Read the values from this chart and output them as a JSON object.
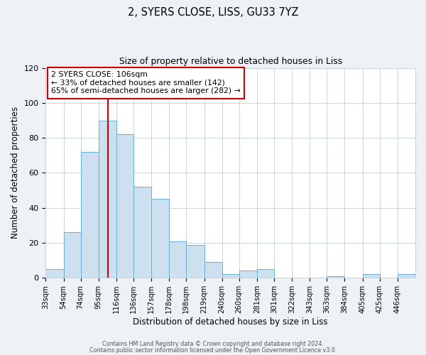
{
  "title": "2, SYERS CLOSE, LISS, GU33 7YZ",
  "subtitle": "Size of property relative to detached houses in Liss",
  "xlabel": "Distribution of detached houses by size in Liss",
  "ylabel": "Number of detached properties",
  "bar_values": [
    5,
    26,
    72,
    90,
    82,
    52,
    45,
    21,
    19,
    9,
    2,
    4,
    5,
    0,
    0,
    0,
    1,
    0,
    2,
    0,
    2
  ],
  "bin_edges": [
    33,
    54,
    74,
    95,
    116,
    136,
    157,
    178,
    198,
    219,
    240,
    260,
    281,
    301,
    322,
    343,
    363,
    384,
    405,
    425,
    446,
    467
  ],
  "tick_labels": [
    "33sqm",
    "54sqm",
    "74sqm",
    "95sqm",
    "116sqm",
    "136sqm",
    "157sqm",
    "178sqm",
    "198sqm",
    "219sqm",
    "240sqm",
    "260sqm",
    "281sqm",
    "301sqm",
    "322sqm",
    "343sqm",
    "363sqm",
    "384sqm",
    "405sqm",
    "425sqm",
    "446sqm"
  ],
  "bar_color": "#cce0f0",
  "bar_edge_color": "#6aaed6",
  "vline_x": 106,
  "vline_color": "#cc0000",
  "ylim": [
    0,
    120
  ],
  "yticks": [
    0,
    20,
    40,
    60,
    80,
    100,
    120
  ],
  "annotation_title": "2 SYERS CLOSE: 106sqm",
  "annotation_line1": "← 33% of detached houses are smaller (142)",
  "annotation_line2": "65% of semi-detached houses are larger (282) →",
  "annotation_box_color": "#ffffff",
  "annotation_box_edge": "#cc0000",
  "footer1": "Contains HM Land Registry data © Crown copyright and database right 2024.",
  "footer2": "Contains public sector information licensed under the Open Government Licence v3.0.",
  "background_color": "#eef2f7",
  "plot_bg_color": "#ffffff",
  "grid_color": "#c8d4e0"
}
